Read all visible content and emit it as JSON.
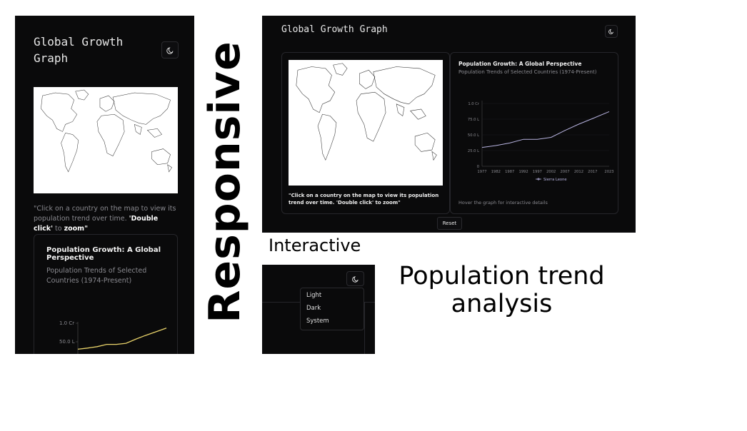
{
  "mobile": {
    "title_line1": "Global Growth",
    "title_line2": "Graph",
    "instruction_plain": "\"Click on a country on the map to view its population trend over time.",
    "instruction_bold1": "'Double click'",
    "instruction_mid": " to ",
    "instruction_bold2": "zoom\"",
    "card_title": "Population Growth: A Global Perspective",
    "card_subtitle": "Population Trends of Selected Countries (1974-Present)",
    "y_ticks": [
      "1.0 Cr",
      "50.0 L"
    ]
  },
  "desktop": {
    "title": "Global Growth Graph",
    "instruction": "\"Click on a country on the map to view its population trend over time. 'Double click' to zoom\"",
    "card_title": "Population Growth: A Global Perspective",
    "card_subtitle": "Population Trends of Selected Countries (1974-Present)",
    "hover_hint": "Hover the graph for interactive details",
    "reset_label": "Reset"
  },
  "dropdown": {
    "items": [
      "Light",
      "Dark",
      "System"
    ]
  },
  "labels": {
    "responsive": "Responsive",
    "interactive": "Interactive",
    "population_line1": "Population trend",
    "population_line2": "analysis"
  },
  "colors": {
    "panel_bg": "#0a0a0b",
    "mobile_line": "#e9d36a",
    "desktop_line": "#b7b3e0"
  },
  "chart_data": {
    "type": "line",
    "title": "Population Growth: A Global Perspective",
    "subtitle": "Population Trends of Selected Countries (1974-Present)",
    "x": [
      1977,
      1982,
      1987,
      1992,
      1997,
      2002,
      2007,
      2012,
      2017,
      2023
    ],
    "x_tick_labels": [
      "1977",
      "1982",
      "1987",
      "1992",
      "1997",
      "2002",
      "2007",
      "2012",
      "2017",
      "2023"
    ],
    "y_tick_labels": [
      "0",
      "25.0 L",
      "50.0 L",
      "75.0 L",
      "1.0 Cr"
    ],
    "ylim": [
      0,
      10000000
    ],
    "series": [
      {
        "name": "Sierra Leone",
        "values": [
          3000000,
          3300000,
          3700000,
          4300000,
          4300000,
          4600000,
          5700000,
          6700000,
          7600000,
          8700000
        ]
      }
    ],
    "legend": "bottom"
  }
}
